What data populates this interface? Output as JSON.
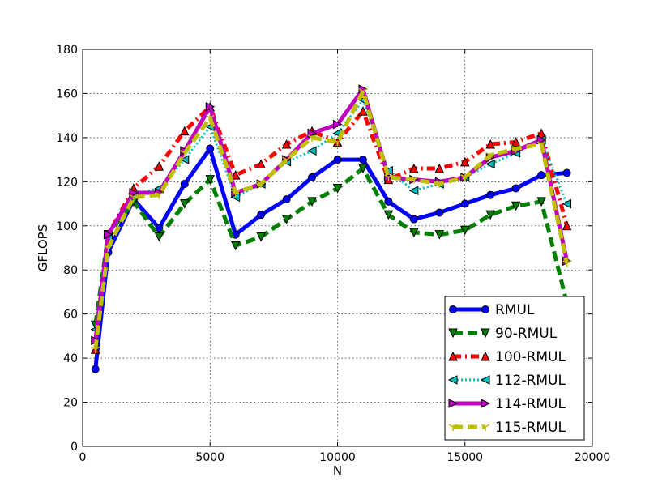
{
  "chart_data": {
    "type": "line",
    "xlabel": "N",
    "ylabel": "GFLOPS",
    "xlim": [
      0,
      20000
    ],
    "ylim": [
      0,
      180
    ],
    "xticks": [
      0,
      5000,
      10000,
      15000,
      20000
    ],
    "yticks": [
      0,
      20,
      40,
      60,
      80,
      100,
      120,
      140,
      160,
      180
    ],
    "xtick_labels": [
      "0",
      "5000",
      "10000",
      "15000",
      "20000"
    ],
    "ytick_labels": [
      "0",
      "20",
      "40",
      "60",
      "80",
      "100",
      "120",
      "140",
      "160",
      "180"
    ],
    "grid": true,
    "legend_position": "lower-right",
    "x": [
      500,
      1000,
      2000,
      3000,
      4000,
      5000,
      6000,
      7000,
      8000,
      9000,
      10000,
      11000,
      12000,
      13000,
      14000,
      15000,
      16000,
      17000,
      18000,
      19000
    ],
    "series": [
      {
        "name": "RMUL",
        "color": "#0000ff",
        "marker": "circle",
        "dash": "solid",
        "width": 5,
        "values": [
          35,
          88,
          112,
          99,
          119,
          135,
          96,
          105,
          112,
          122,
          130,
          130,
          111,
          103,
          106,
          110,
          114,
          117,
          123,
          124
        ]
      },
      {
        "name": "90-RMUL",
        "color": "#008000",
        "marker": "triangle-down",
        "dash": "dashed",
        "width": 5,
        "values": [
          55,
          96,
          111,
          95,
          110,
          121,
          91,
          95,
          103,
          111,
          117,
          126,
          105,
          97,
          96,
          98,
          105,
          109,
          111,
          65
        ]
      },
      {
        "name": "100-RMUL",
        "color": "#ff0000",
        "marker": "triangle-up",
        "dash": "dashdot",
        "width": 5,
        "values": [
          44,
          96,
          117,
          127,
          143,
          154,
          123,
          128,
          137,
          143,
          138,
          152,
          121,
          126,
          126,
          129,
          137,
          138,
          142,
          100
        ]
      },
      {
        "name": "112-RMUL",
        "color": "#00bfbf",
        "marker": "triangle-left",
        "dash": "dotted",
        "width": 3,
        "values": [
          53,
          95,
          114,
          117,
          130,
          145,
          113,
          119,
          129,
          134,
          142,
          157,
          125,
          116,
          119,
          122,
          128,
          133,
          139,
          110
        ]
      },
      {
        "name": "114-RMUL",
        "color": "#bf00bf",
        "marker": "triangle-right",
        "dash": "solid",
        "width": 5,
        "values": [
          48,
          96,
          115,
          115,
          134,
          154,
          115,
          119,
          130,
          142,
          146,
          162,
          122,
          121,
          120,
          122,
          131,
          134,
          139,
          84
        ]
      },
      {
        "name": "115-RMUL",
        "color": "#bfbf00",
        "marker": "tri-down",
        "dash": "dashed",
        "width": 5,
        "values": [
          44,
          90,
          113,
          114,
          133,
          149,
          115,
          119,
          130,
          140,
          138,
          161,
          122,
          121,
          119,
          122,
          132,
          135,
          137,
          83
        ]
      }
    ]
  }
}
